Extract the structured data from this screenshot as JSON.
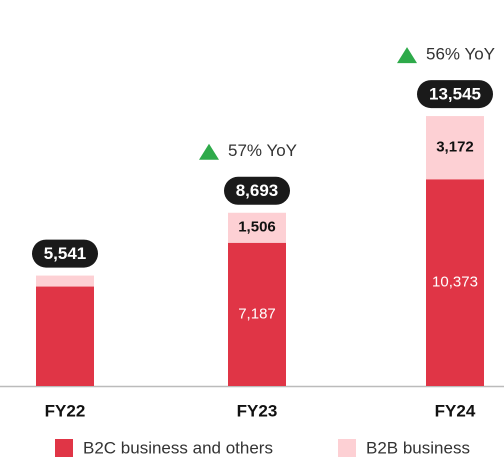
{
  "chart_data": {
    "type": "stacked-bar",
    "categories": [
      "FY22",
      "FY23",
      "FY24"
    ],
    "series": [
      {
        "name": "B2C business and others",
        "color": "#e03546",
        "values": [
          4991,
          7187,
          10373
        ],
        "value_labels": [
          null,
          "7,187",
          "10,373"
        ]
      },
      {
        "name": "B2B business",
        "color": "#fdd0d4",
        "values": [
          550,
          1506,
          3172
        ],
        "value_labels": [
          null,
          "1,506",
          "3,172"
        ]
      }
    ],
    "totals": [
      5541,
      8693,
      13545
    ],
    "total_labels": [
      "5,541",
      "8,693",
      "13,545"
    ],
    "annotations": [
      null,
      "57% YoY",
      "56% YoY"
    ],
    "ylim": [
      0,
      14000
    ]
  }
}
